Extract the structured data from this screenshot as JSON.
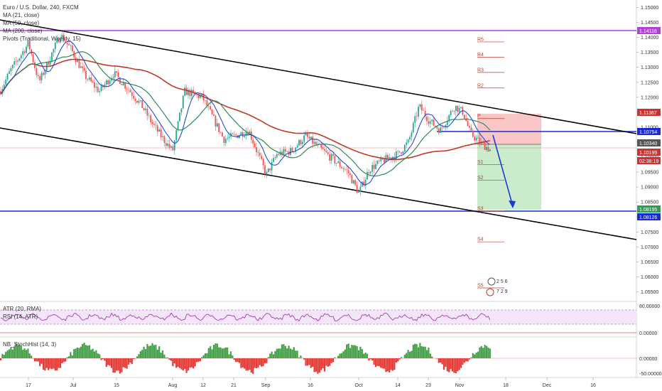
{
  "legend": {
    "symbol": "Euro / U.S. Dollar, 240, FXCM",
    "ma1": "MA (21, close)",
    "ma2": "MA (50, close)",
    "ma3": "MA (200, close)",
    "pivots": "Pivots (Traditional, Weekly, 15)"
  },
  "indicators": {
    "atr_label": "ATR (20, RMA)",
    "rsi_label": "RSI (14, ATR)",
    "stoch_label": "NB_StochHist (14, 3)"
  },
  "colors": {
    "up": "#26a69a",
    "down": "#ef5350",
    "ma21": "#1e4fd8",
    "ma50": "#2e8b57",
    "ma200": "#c0392b",
    "magenta_line": "#b040d8",
    "blue_line": "#1a2ad8",
    "channel": "#000000",
    "rsi": "#9c27b0"
  },
  "badges": {
    "b1": "1.14116",
    "b2": "1.11367",
    "b3": "1.10754",
    "b4": "1.10340",
    "b5": "1.10199",
    "b6": "02:38:19",
    "b7": "1.08195",
    "b8": "1.08126",
    "rsi_top": "80.00000",
    "rsi_bot": "0.00000",
    "stoch_top": "0.00000",
    "stoch_bot": "-50.00000"
  },
  "pivot_labels": [
    "R5",
    "R4",
    "R3",
    "R2",
    "P",
    "S1",
    "S2",
    "S3",
    "S4",
    "S5"
  ],
  "chart_data": {
    "type": "candlestick",
    "x_ticks": [
      "17",
      "Jul",
      "15",
      "Aug",
      "12",
      "21",
      "Sep",
      "16",
      "Oct",
      "14",
      "23",
      "Nov",
      "18",
      "Dec",
      "16"
    ],
    "y_ticks": [
      "1.15000",
      "1.14500",
      "1.14000",
      "1.13500",
      "1.13000",
      "1.12500",
      "1.12000",
      "1.11500",
      "1.11000",
      "1.10500",
      "1.10000",
      "1.09500",
      "1.09000",
      "1.08500",
      "1.08000",
      "1.07500",
      "1.07000",
      "1.06500",
      "1.06000",
      "1.05500"
    ],
    "ylim": [
      1.0525,
      1.1525
    ],
    "horizontal_lines": [
      1.14116,
      1.10754,
      1.10199,
      1.08195
    ],
    "pivots": {
      "R5": 1.1385,
      "R4": 1.1334,
      "R3": 1.1283,
      "R2": 1.1231,
      "P": 1.1129,
      "S1": 1.0975,
      "S2": 1.0923,
      "S3": 1.082,
      "S4": 1.0717,
      "S5": 1.0563
    },
    "trade": {
      "entry": 1.1034,
      "stop": 1.11367,
      "target": 1.08195
    },
    "grid": false,
    "legend_placement": "top-left"
  }
}
